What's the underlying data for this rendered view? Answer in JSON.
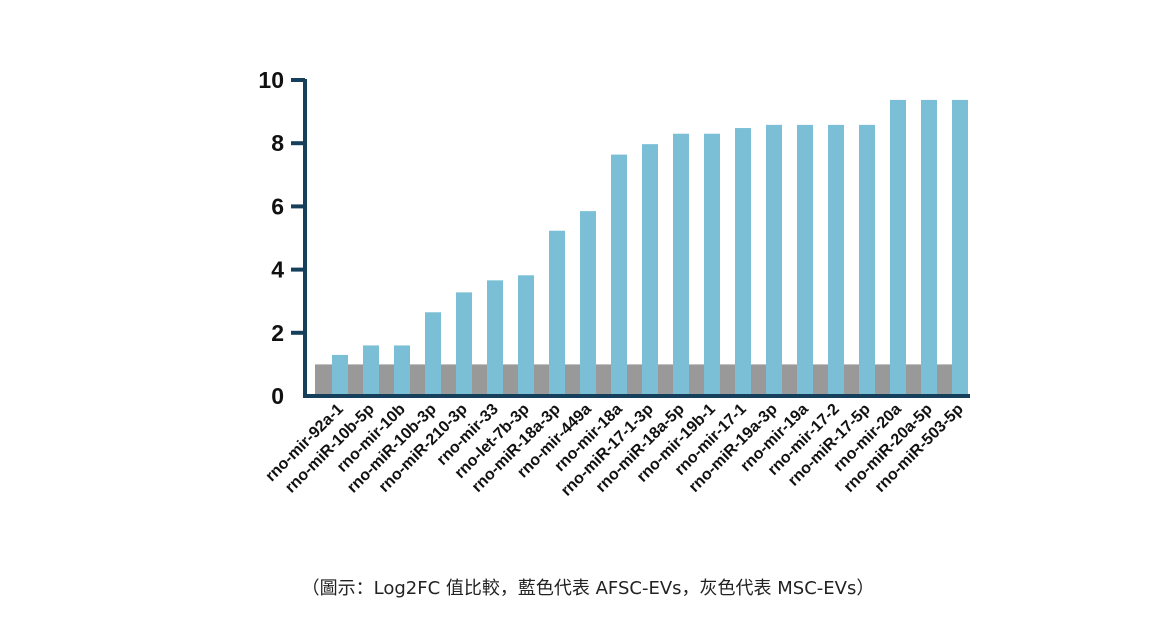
{
  "chart_data": {
    "type": "bar",
    "categories": [
      "rno-mir-92a-1",
      "rno-miR-10b-5p",
      "rno-mir-10b",
      "rno-miR-10b-3p",
      "rno-miR-210-3p",
      "rno-mir-33",
      "rno-let-7b-3p",
      "rno-miR-18a-3p",
      "rno-mir-449a",
      "rno-mir-18a",
      "rno-miR-17-1-3p",
      "rno-miR-18a-5p",
      "rno-mir-19b-1",
      "rno-mir-17-1",
      "rno-miR-19a-3p",
      "rno-mir-19a",
      "rno-mir-17-2",
      "rno-miR-17-5p",
      "rno-mir-20a",
      "rno-miR-20a-5p",
      "rno-miR-503-5p"
    ],
    "series": [
      {
        "values": [
          1.3,
          1.6,
          1.6,
          2.65,
          3.28,
          3.66,
          3.82,
          5.23,
          5.85,
          7.64,
          7.97,
          8.3,
          8.3,
          8.48,
          8.58,
          8.58,
          8.58,
          8.58,
          9.37,
          9.37,
          9.37
        ],
        "color": "#7bbfd6"
      },
      {
        "values": [
          1,
          1,
          1,
          1,
          1,
          1,
          1,
          1,
          1,
          1,
          1,
          1,
          1,
          1,
          1,
          1,
          1,
          1,
          1,
          1,
          1
        ],
        "color": "#999999"
      }
    ],
    "ylim": [
      0,
      10
    ],
    "yticks": [
      "0",
      "2",
      "4",
      "6",
      "8",
      "10"
    ],
    "axis_color": "#163f5c",
    "grid": false,
    "legend": "none"
  },
  "caption": "（圖示：Log2FC 值比較，藍色代表 AFSC-EVs，灰色代表 MSC-EVs）"
}
